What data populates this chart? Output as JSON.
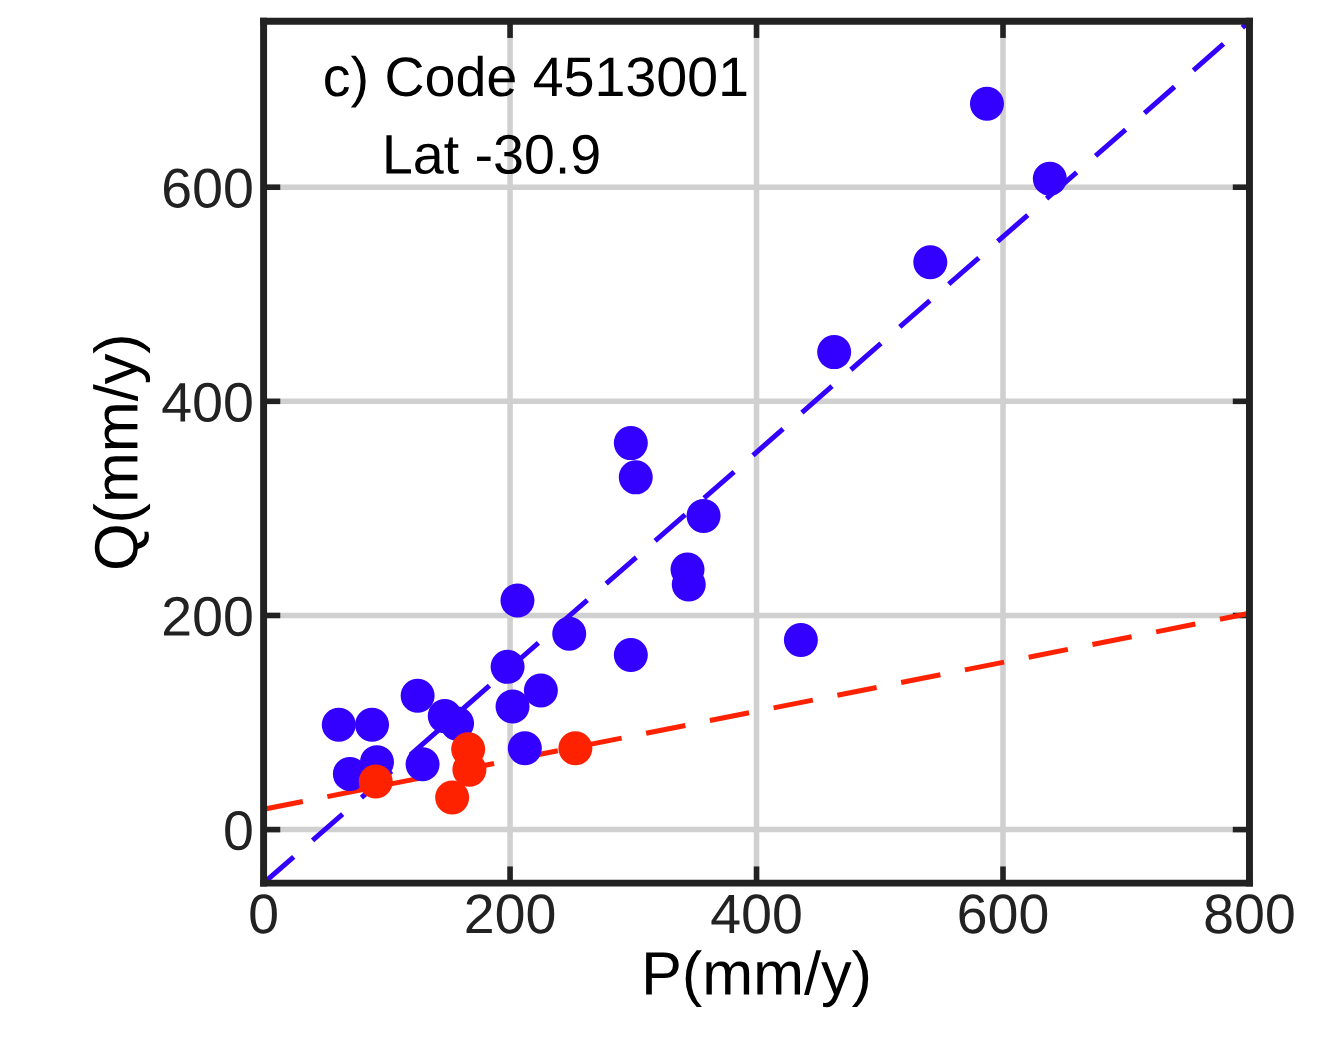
{
  "chart_data": {
    "type": "scatter",
    "xlabel": "P(mm/y)",
    "ylabel": "Q(mm/y)",
    "annotations": [
      "c) Code 4513001",
      "Lat -30.9"
    ],
    "xlim": [
      0,
      800
    ],
    "ylim": [
      -50,
      755
    ],
    "xticks": [
      0,
      200,
      400,
      600,
      800
    ],
    "yticks": [
      0,
      200,
      400,
      600
    ],
    "grid": true,
    "marker": "circle",
    "series": [
      {
        "type": "line",
        "color": "#3300ff",
        "line_style": "dashed",
        "marker": "none",
        "x": [
          0,
          800
        ],
        "values": [
          -50,
          755
        ]
      },
      {
        "type": "line",
        "color": "#ff2200",
        "line_style": "dashed",
        "marker": "none",
        "x": [
          0,
          800
        ],
        "values": [
          19,
          202
        ]
      },
      {
        "color": "#3300ff",
        "x": [
          587,
          638,
          541,
          463,
          298,
          302,
          357,
          344,
          345,
          206,
          248,
          298,
          436,
          198,
          225,
          202,
          125,
          147,
          157,
          61,
          88,
          92,
          70,
          129,
          212
        ],
        "values": [
          678,
          608,
          530,
          446,
          361,
          329,
          293,
          243,
          229,
          214,
          183,
          163,
          177,
          152,
          130,
          115,
          125,
          106,
          99,
          98,
          98,
          63,
          52,
          61,
          76
        ]
      },
      {
        "color": "#ff2200",
        "x": [
          91,
          166,
          167,
          153,
          253
        ],
        "values": [
          45,
          75,
          56,
          30,
          76
        ]
      }
    ]
  }
}
